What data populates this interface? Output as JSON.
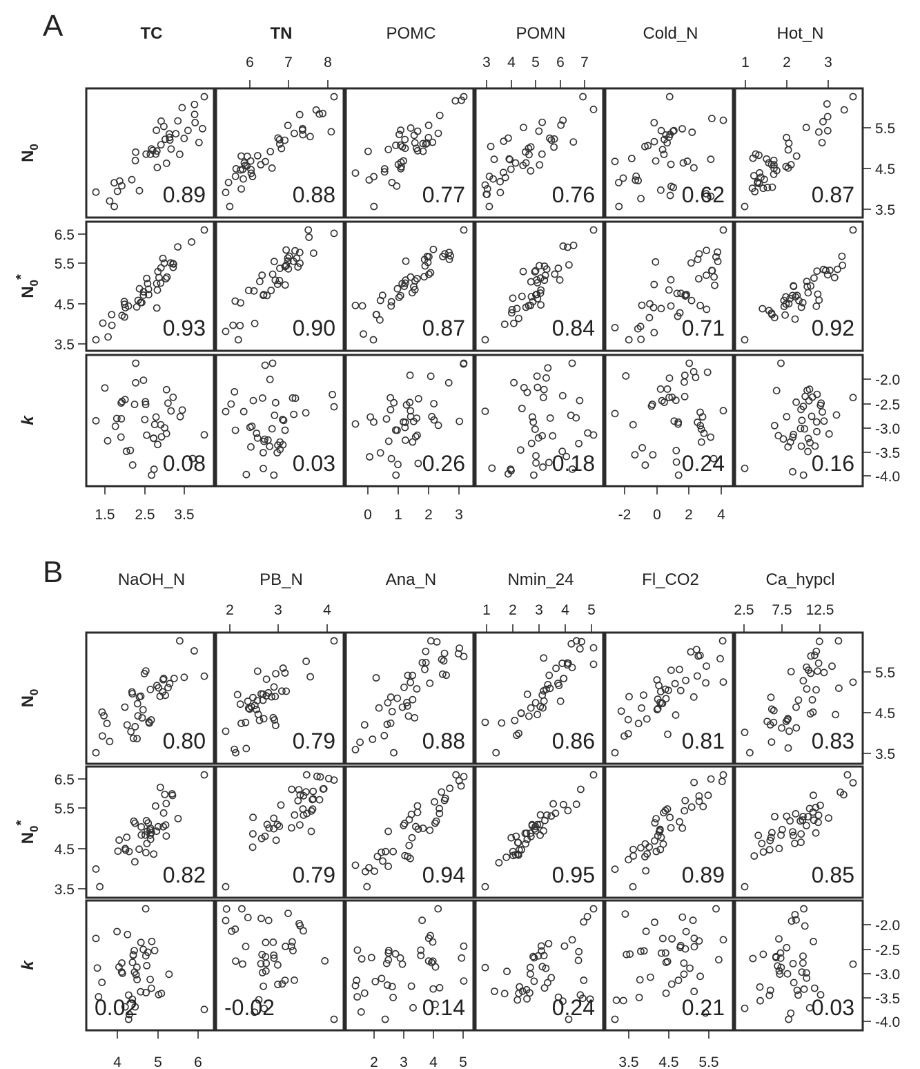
{
  "chart_data": [
    {
      "panel_label": "A",
      "type": "scatter",
      "variables": [
        {
          "name": "TC",
          "bold": true,
          "ticks": [
            "1.5",
            "2.5",
            "3.5"
          ],
          "tick_pos": "bottom"
        },
        {
          "name": "TN",
          "bold": true,
          "ticks": [
            "6",
            "7",
            "8"
          ],
          "tick_pos": "top"
        },
        {
          "name": "POMC",
          "bold": false,
          "ticks": [
            "0",
            "1",
            "2",
            "3"
          ],
          "tick_pos": "bottom"
        },
        {
          "name": "POMN",
          "bold": false,
          "ticks": [
            "3",
            "4",
            "5",
            "6",
            "7"
          ],
          "tick_pos": "top"
        },
        {
          "name": "Cold_N",
          "bold": false,
          "ticks": [
            "-2",
            "0",
            "2",
            "4"
          ],
          "tick_pos": "bottom"
        },
        {
          "name": "Hot_N",
          "bold": false,
          "ticks": [
            "1",
            "2",
            "3"
          ],
          "tick_pos": "top"
        }
      ],
      "rows": [
        {
          "label": "N0",
          "ticks": [
            "3.5",
            "4.5",
            "5.5"
          ],
          "tick_side": "right",
          "correlations": [
            "0.89",
            "0.88",
            "0.77",
            "0.76",
            "0.62",
            "0.87"
          ]
        },
        {
          "label": "N0*",
          "ticks": [
            "3.5",
            "4.5",
            "5.5",
            "6.5"
          ],
          "tick_side": "left",
          "correlations": [
            "0.93",
            "0.90",
            "0.87",
            "0.84",
            "0.71",
            "0.92"
          ]
        },
        {
          "label": "k",
          "ticks": [
            "-4.0",
            "-3.5",
            "-3.0",
            "-2.5",
            "-2.0"
          ],
          "tick_side": "right",
          "correlations": [
            "0.08",
            "0.03",
            "0.26",
            "0.18",
            "0.24",
            "0.16"
          ]
        }
      ]
    },
    {
      "panel_label": "B",
      "type": "scatter",
      "variables": [
        {
          "name": "NaOH_N",
          "bold": false,
          "ticks": [
            "4",
            "5",
            "6"
          ],
          "tick_pos": "bottom"
        },
        {
          "name": "PB_N",
          "bold": false,
          "ticks": [
            "2",
            "3",
            "4"
          ],
          "tick_pos": "top"
        },
        {
          "name": "Ana_N",
          "bold": false,
          "ticks": [
            "2",
            "3",
            "4",
            "5"
          ],
          "tick_pos": "bottom"
        },
        {
          "name": "Nmin_24",
          "bold": false,
          "ticks": [
            "1",
            "2",
            "3",
            "4",
            "5"
          ],
          "tick_pos": "top"
        },
        {
          "name": "Fl_CO2",
          "bold": false,
          "ticks": [
            "3.5",
            "4.5",
            "5.5"
          ],
          "tick_pos": "bottom"
        },
        {
          "name": "Ca_hypcl",
          "bold": false,
          "ticks": [
            "2.5",
            "7.5",
            "12.5"
          ],
          "tick_pos": "top"
        }
      ],
      "rows": [
        {
          "label": "N0",
          "ticks": [
            "3.5",
            "4.5",
            "5.5"
          ],
          "tick_side": "right",
          "correlations": [
            "0.80",
            "0.79",
            "0.88",
            "0.86",
            "0.81",
            "0.83"
          ]
        },
        {
          "label": "N0*",
          "ticks": [
            "3.5",
            "4.5",
            "5.5",
            "6.5"
          ],
          "tick_side": "left",
          "correlations": [
            "0.82",
            "0.79",
            "0.94",
            "0.95",
            "0.89",
            "0.85"
          ]
        },
        {
          "label": "k",
          "ticks": [
            "-4.0",
            "-3.5",
            "-3.0",
            "-2.5",
            "-2.0"
          ],
          "tick_side": "right",
          "correlations": [
            "0.02",
            "-0.02",
            "0.14",
            "0.24",
            "0.21",
            "0.03"
          ]
        }
      ]
    }
  ]
}
